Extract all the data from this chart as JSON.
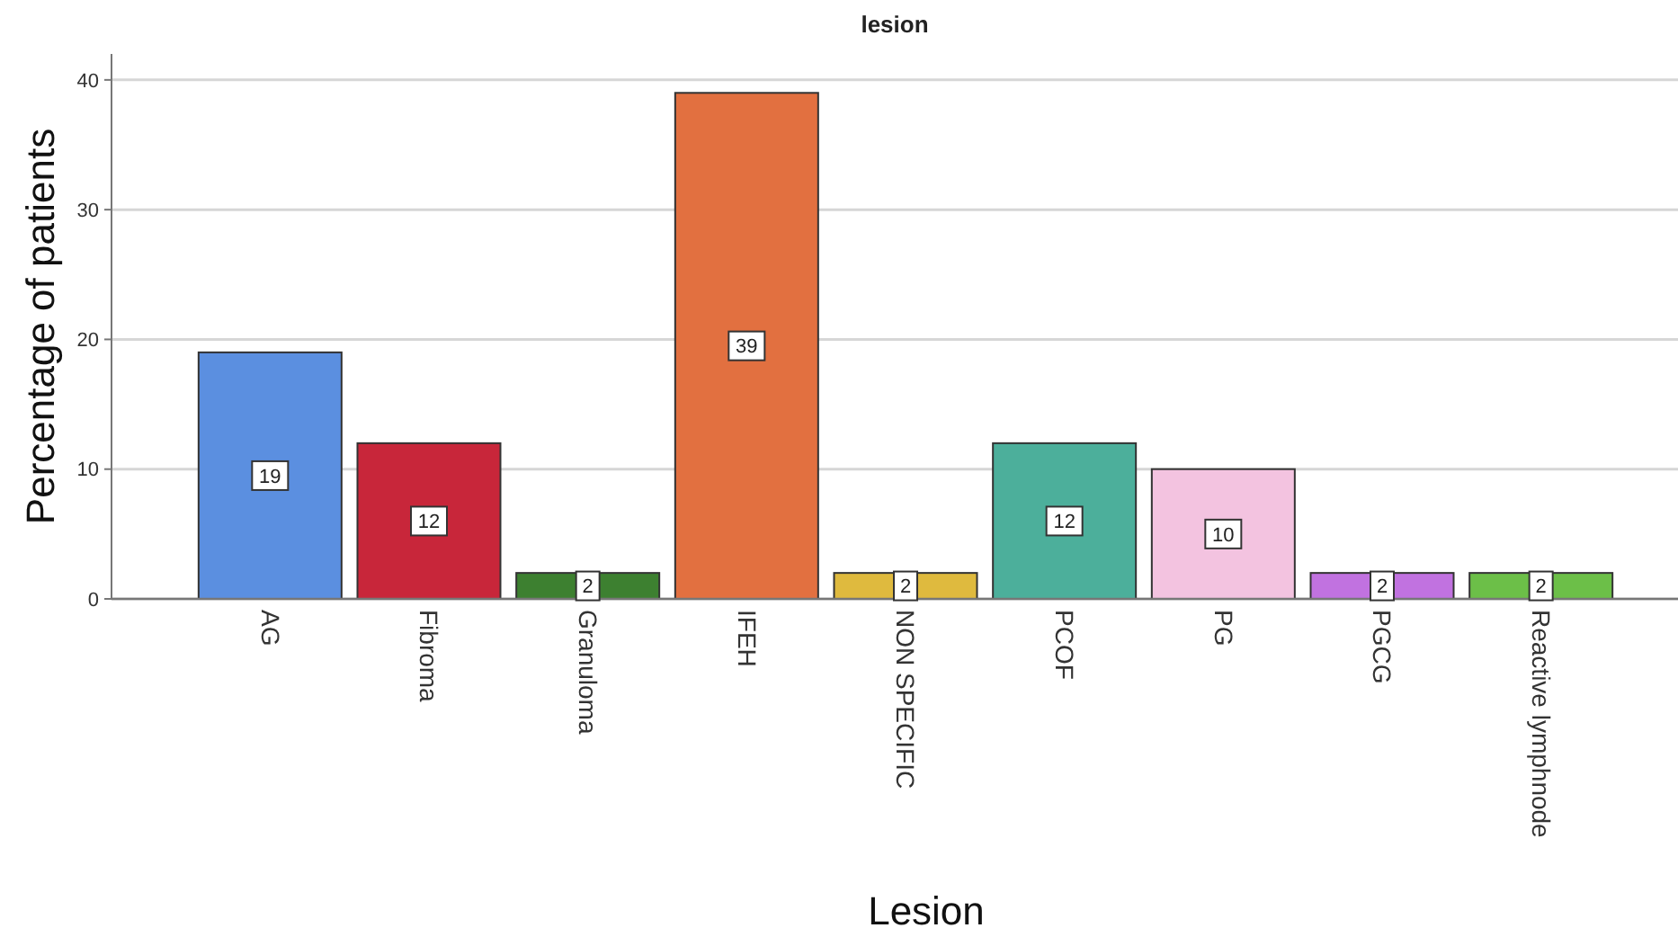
{
  "chart_data": {
    "type": "bar",
    "title": "lesion",
    "xlabel": "Lesion",
    "ylabel": "Percentage of patients",
    "categories": [
      "AG",
      "Fibroma",
      "Granuloma",
      "IFEH",
      "NON SPECIFIC",
      "PCOF",
      "PG",
      "PGCG",
      "Reactive lymphnode"
    ],
    "values": [
      19,
      12,
      2,
      39,
      2,
      12,
      10,
      2,
      2
    ],
    "colors": [
      "#5b8fe0",
      "#c8263a",
      "#3d8030",
      "#e27040",
      "#dfba3e",
      "#4caf9b",
      "#f3c3e0",
      "#c172e0",
      "#6cbf48"
    ],
    "ylim": [
      0,
      42
    ],
    "yticks": [
      0,
      10,
      20,
      30,
      40
    ],
    "grid": "y",
    "data_labels": true
  }
}
